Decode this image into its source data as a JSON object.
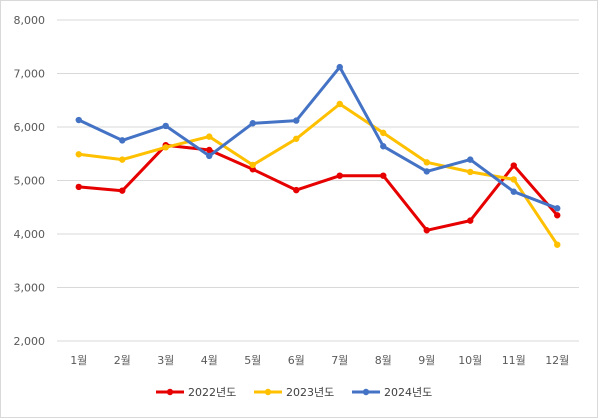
{
  "chart_data": {
    "type": "line",
    "title": "",
    "xlabel": "",
    "ylabel": "",
    "ylim": [
      2000,
      8000
    ],
    "yticks": [
      "2,000",
      "3,000",
      "4,000",
      "5,000",
      "6,000",
      "7,000",
      "8,000"
    ],
    "grid": true,
    "legend_position": "bottom",
    "categories": [
      "1월",
      "2월",
      "3월",
      "4월",
      "5월",
      "6월",
      "7월",
      "8월",
      "9월",
      "10월",
      "11월",
      "12월"
    ],
    "series": [
      {
        "name": "2022년도",
        "color": "#e60000",
        "values": [
          4880,
          4810,
          5660,
          5570,
          5210,
          4820,
          5090,
          5090,
          4070,
          4250,
          5280,
          4350
        ]
      },
      {
        "name": "2023년도",
        "color": "#ffc000",
        "values": [
          5490,
          5390,
          5620,
          5820,
          5290,
          5780,
          6430,
          5890,
          5340,
          5160,
          5020,
          3800
        ]
      },
      {
        "name": "2024년도",
        "color": "#4472c4",
        "values": [
          6130,
          5750,
          6020,
          5460,
          6070,
          6120,
          7120,
          5640,
          5170,
          5390,
          4790,
          4480
        ]
      }
    ]
  }
}
